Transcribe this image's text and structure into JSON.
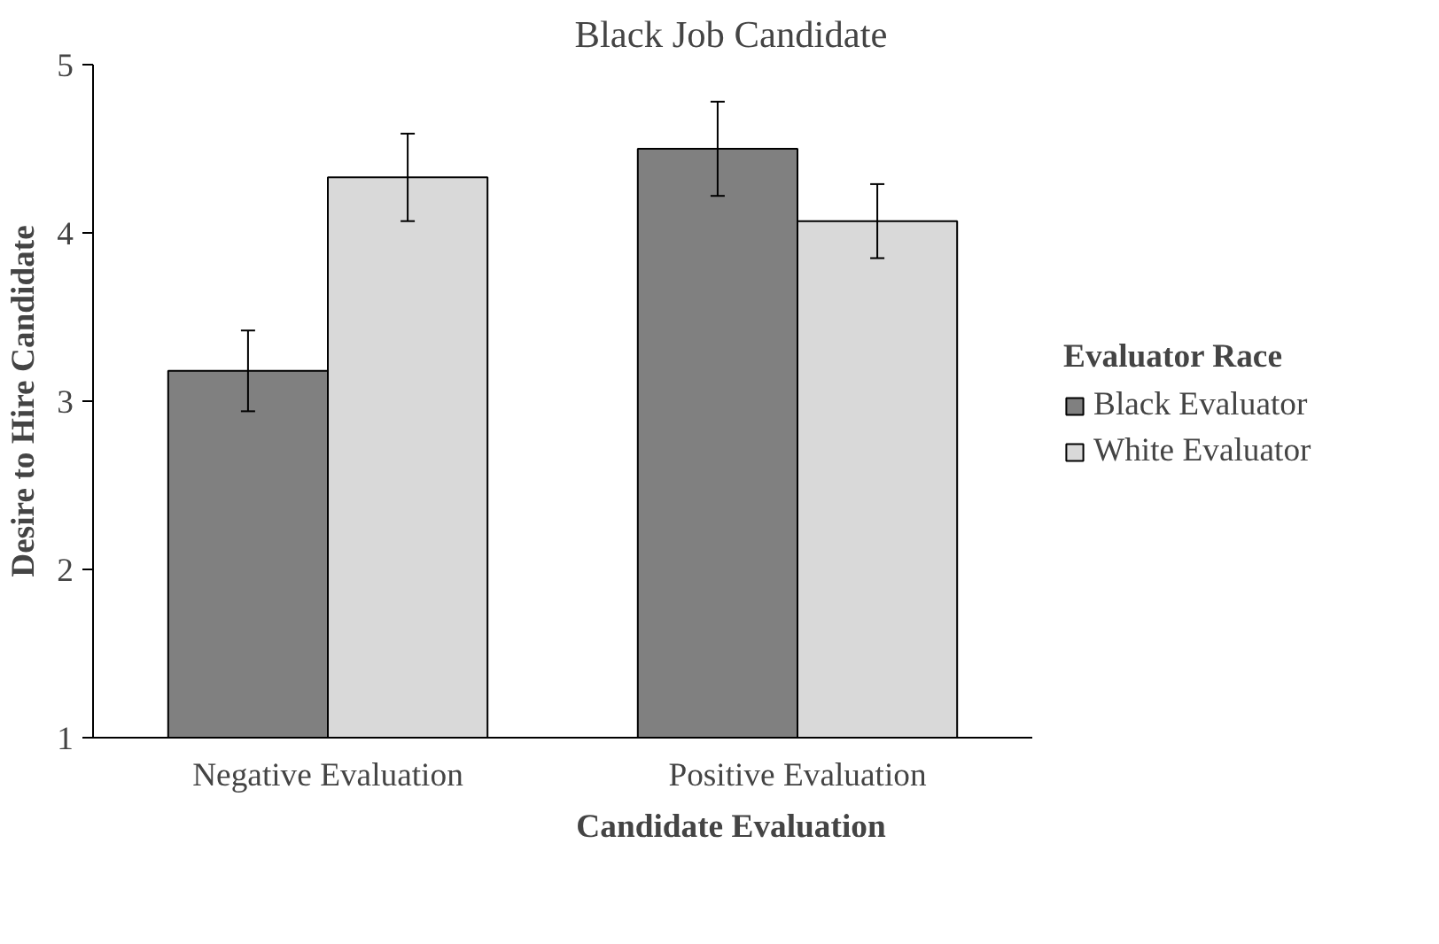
{
  "chart_data": {
    "type": "bar",
    "title": "Black Job Candidate",
    "xlabel": "Candidate Evaluation",
    "ylabel": "Desire to Hire Candidate",
    "legend_title": "Evaluator Race",
    "categories": [
      "Negative Evaluation",
      "Positive Evaluation"
    ],
    "series": [
      {
        "name": "Black Evaluator",
        "color": "#808080",
        "values": [
          3.18,
          4.5
        ],
        "errors": [
          0.24,
          0.28
        ]
      },
      {
        "name": "White Evaluator",
        "color": "#d9d9d9",
        "values": [
          4.33,
          4.07
        ],
        "errors": [
          0.26,
          0.22
        ]
      }
    ],
    "ylim": [
      1,
      5
    ],
    "yticks": [
      1,
      2,
      3,
      4,
      5
    ],
    "grid": false,
    "legend": "right"
  }
}
